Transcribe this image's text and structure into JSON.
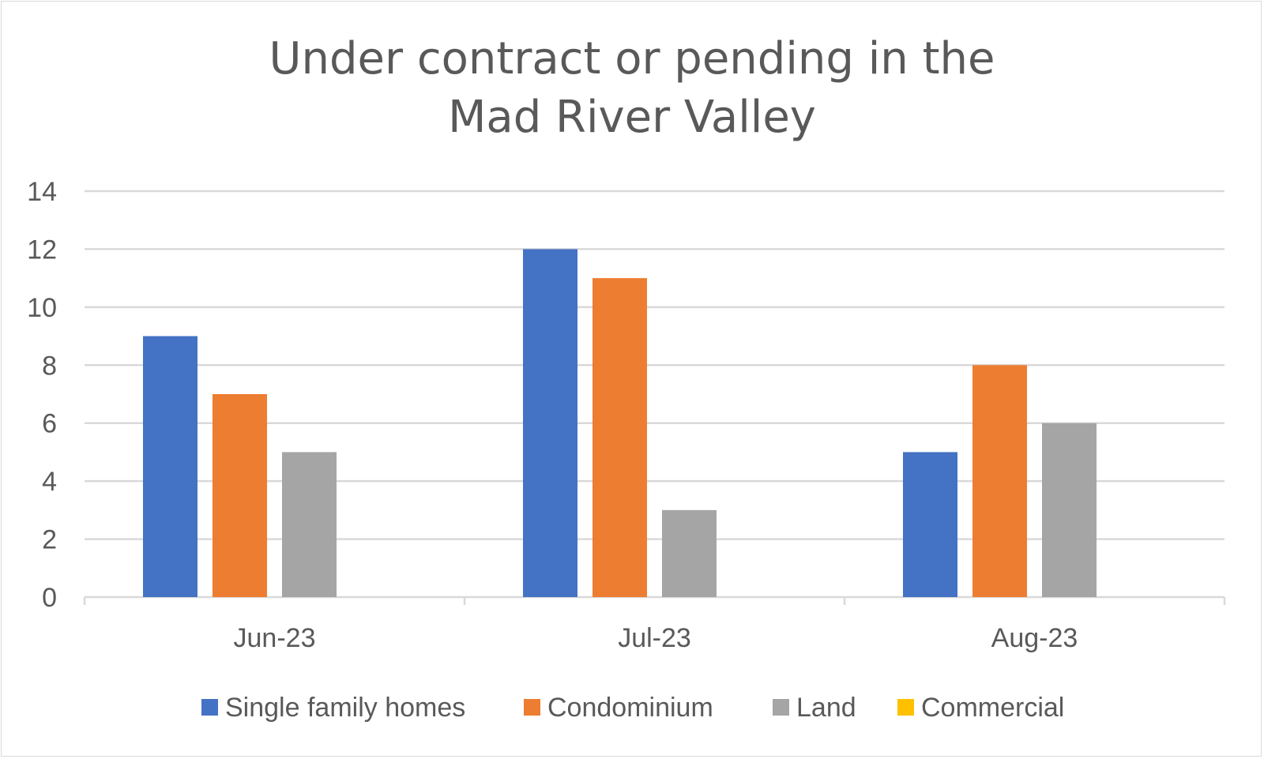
{
  "chart_data": {
    "type": "bar",
    "title_lines": [
      "Under contract or pending in the",
      "Mad River Valley"
    ],
    "categories": [
      "Jun-23",
      "Jul-23",
      "Aug-23"
    ],
    "series": [
      {
        "name": "Single family homes",
        "color": "#4472C4",
        "values": [
          9,
          12,
          5
        ]
      },
      {
        "name": "Condominium",
        "color": "#ED7D31",
        "values": [
          7,
          11,
          8
        ]
      },
      {
        "name": "Land",
        "color": "#A5A5A5",
        "values": [
          5,
          3,
          6
        ]
      },
      {
        "name": "Commercial",
        "color": "#FFC000",
        "values": [
          0,
          0,
          0
        ]
      }
    ],
    "ylim": [
      0,
      14
    ],
    "yticks": [
      "0",
      "2",
      "4",
      "6",
      "8",
      "10",
      "12",
      "14"
    ],
    "grid": true,
    "legend_position": "bottom"
  }
}
